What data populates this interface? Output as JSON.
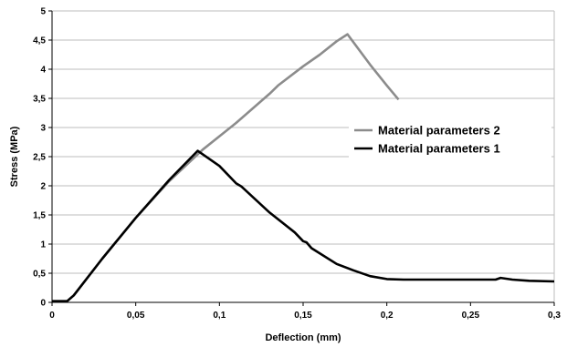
{
  "chart_data": {
    "type": "line",
    "title": "",
    "xlabel": "Deflection (mm)",
    "ylabel": "Stress (MPa)",
    "xlim": [
      0,
      0.3
    ],
    "ylim": [
      0,
      5
    ],
    "x_ticks": [
      "0",
      "0,05",
      "0,1",
      "0,15",
      "0,2",
      "0,25",
      "0,3"
    ],
    "y_ticks": [
      "0",
      "0,5",
      "1",
      "1,5",
      "2",
      "2,5",
      "3",
      "3,5",
      "4",
      "4,5",
      "5"
    ],
    "grid": "horizontal",
    "legend_position": "right",
    "series": [
      {
        "name": "Material parameters 2",
        "color": "#8c8c8c",
        "points": [
          [
            0,
            0.02
          ],
          [
            0.009,
            0.02
          ],
          [
            0.013,
            0.12
          ],
          [
            0.03,
            0.75
          ],
          [
            0.05,
            1.45
          ],
          [
            0.07,
            2.08
          ],
          [
            0.09,
            2.62
          ],
          [
            0.11,
            3.08
          ],
          [
            0.13,
            3.58
          ],
          [
            0.135,
            3.72
          ],
          [
            0.15,
            4.05
          ],
          [
            0.16,
            4.25
          ],
          [
            0.17,
            4.48
          ],
          [
            0.1765,
            4.6
          ],
          [
            0.19,
            4.08
          ],
          [
            0.2,
            3.72
          ],
          [
            0.207,
            3.48
          ]
        ]
      },
      {
        "name": "Material parameters 1",
        "color": "#000000",
        "points": [
          [
            0,
            0.02
          ],
          [
            0.009,
            0.02
          ],
          [
            0.013,
            0.12
          ],
          [
            0.03,
            0.75
          ],
          [
            0.05,
            1.45
          ],
          [
            0.07,
            2.1
          ],
          [
            0.087,
            2.6
          ],
          [
            0.1,
            2.34
          ],
          [
            0.11,
            2.04
          ],
          [
            0.113,
            1.99
          ],
          [
            0.13,
            1.54
          ],
          [
            0.145,
            1.2
          ],
          [
            0.15,
            1.05
          ],
          [
            0.152,
            1.03
          ],
          [
            0.155,
            0.93
          ],
          [
            0.17,
            0.66
          ],
          [
            0.18,
            0.55
          ],
          [
            0.19,
            0.45
          ],
          [
            0.2,
            0.4
          ],
          [
            0.21,
            0.39
          ],
          [
            0.25,
            0.39
          ],
          [
            0.265,
            0.39
          ],
          [
            0.268,
            0.42
          ],
          [
            0.275,
            0.39
          ],
          [
            0.285,
            0.37
          ],
          [
            0.3,
            0.36
          ]
        ]
      }
    ]
  }
}
